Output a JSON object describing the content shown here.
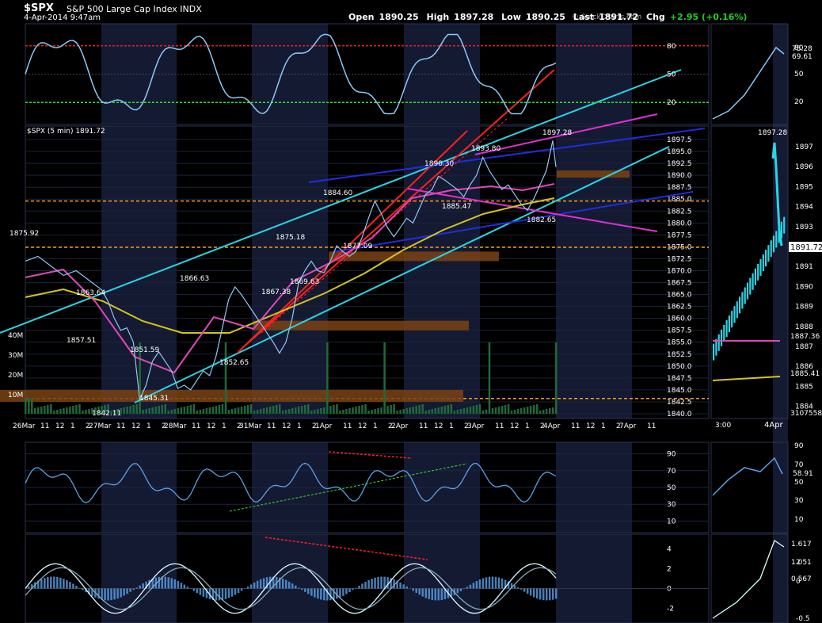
{
  "header": {
    "symbol": "$SPX",
    "name": "S&P 500 Large Cap Index INDX",
    "timestamp": "4-Apr-2014 9:47am",
    "open_label": "Open",
    "open": "1890.25",
    "high_label": "High",
    "high": "1897.28",
    "low_label": "Low",
    "low": "1890.25",
    "last_label": "Last",
    "last": "1891.72",
    "chg_label": "Chg",
    "chg": "+2.95 (+0.16%)",
    "logo": "© StockCharts.com"
  },
  "colors": {
    "background": "#000000",
    "panel_border": "#2a3550",
    "session_shade": "#151a33",
    "price_line": "#8ec7f5",
    "indicator_line": "#5aa0e8",
    "trend_red": "#ff2020",
    "trend_cyan": "#29d5e5",
    "trend_blue": "#1f2de0",
    "trend_magenta": "#e030d0",
    "ma_yellow": "#d4c420",
    "ma_pink": "#e048b8",
    "level_orange": "#ff9a1a",
    "zone_brown": "#7a4313",
    "rsi_red": "#e02020",
    "rsi_green": "#30e030",
    "volume_green": "#1f6a3a"
  },
  "chart_data": {
    "type": "line",
    "timeframe": "5 min",
    "price_legend": "$SPX (5 min) 1891.72",
    "price_axis": {
      "ylim": [
        1840.0,
        1898.5
      ],
      "ticks": [
        "1897.5",
        "1895.0",
        "1892.5",
        "1890.0",
        "1887.5",
        "1885.0",
        "1882.5",
        "1880.0",
        "1877.5",
        "1875.0",
        "1872.5",
        "1870.0",
        "1867.5",
        "1865.0",
        "1862.5",
        "1860.0",
        "1857.5",
        "1855.0",
        "1852.5",
        "1850.0",
        "1847.5",
        "1845.0",
        "1842.5",
        "1840.0"
      ],
      "last_value": "1891.72"
    },
    "price_series": [
      [
        0,
        1872
      ],
      [
        4,
        1873
      ],
      [
        8,
        1871
      ],
      [
        12,
        1869
      ],
      [
        16,
        1870
      ],
      [
        20,
        1868
      ],
      [
        24,
        1866
      ],
      [
        26,
        1863.6
      ],
      [
        28,
        1860
      ],
      [
        30,
        1857.5
      ],
      [
        32,
        1858
      ],
      [
        34,
        1855
      ],
      [
        36,
        1843
      ],
      [
        38,
        1846
      ],
      [
        40,
        1851
      ],
      [
        42,
        1853
      ],
      [
        44,
        1851
      ],
      [
        46,
        1849
      ],
      [
        48,
        1845.3
      ],
      [
        50,
        1846
      ],
      [
        52,
        1845
      ],
      [
        54,
        1847
      ],
      [
        56,
        1849
      ],
      [
        58,
        1848
      ],
      [
        60,
        1852
      ],
      [
        62,
        1858
      ],
      [
        64,
        1864
      ],
      [
        66,
        1866.6
      ],
      [
        68,
        1865
      ],
      [
        70,
        1863
      ],
      [
        72,
        1861
      ],
      [
        74,
        1859
      ],
      [
        76,
        1857
      ],
      [
        78,
        1855
      ],
      [
        80,
        1852.7
      ],
      [
        82,
        1855
      ],
      [
        84,
        1860
      ],
      [
        86,
        1867.4
      ],
      [
        88,
        1870
      ],
      [
        90,
        1872
      ],
      [
        92,
        1870
      ],
      [
        94,
        1869.6
      ],
      [
        96,
        1872
      ],
      [
        98,
        1875.2
      ],
      [
        100,
        1874
      ],
      [
        102,
        1873
      ],
      [
        104,
        1874
      ],
      [
        106,
        1877
      ],
      [
        108,
        1881
      ],
      [
        110,
        1884.6
      ],
      [
        112,
        1882
      ],
      [
        114,
        1879
      ],
      [
        116,
        1877.1
      ],
      [
        118,
        1879
      ],
      [
        120,
        1881
      ],
      [
        122,
        1880
      ],
      [
        124,
        1883
      ],
      [
        126,
        1886
      ],
      [
        128,
        1887
      ],
      [
        130,
        1889.8
      ],
      [
        132,
        1889
      ],
      [
        134,
        1888
      ],
      [
        136,
        1887
      ],
      [
        138,
        1885.5
      ],
      [
        140,
        1888
      ],
      [
        142,
        1890
      ],
      [
        144,
        1893.8
      ],
      [
        146,
        1891
      ],
      [
        148,
        1889
      ],
      [
        150,
        1887
      ],
      [
        152,
        1888
      ],
      [
        154,
        1886
      ],
      [
        156,
        1884
      ],
      [
        158,
        1882.65
      ],
      [
        160,
        1885
      ],
      [
        162,
        1888
      ],
      [
        164,
        1891
      ],
      [
        166,
        1897.28
      ],
      [
        167,
        1891.72
      ]
    ],
    "price_labels": [
      "1875.92",
      "1863.64",
      "1857.51",
      "1842.11",
      "1851.59",
      "1845.31",
      "1866.63",
      "1852.65",
      "1867.38",
      "1875.18",
      "1869.63",
      "1884.60",
      "1877.09",
      "1890.30",
      "1885.47",
      "1893.80",
      "1882.65",
      "1897.28"
    ],
    "x_axis_labels": [
      "26Mar",
      "11",
      "12",
      "1",
      "2",
      "27Mar",
      "11",
      "12",
      "1",
      "2",
      "28Mar",
      "11",
      "12",
      "1",
      "2",
      "31Mar",
      "11",
      "12",
      "1",
      "2",
      "1Apr",
      "11",
      "12",
      "1",
      "2",
      "2Apr",
      "11",
      "12",
      "1",
      "2",
      "3Apr",
      "11",
      "12",
      "1",
      "2",
      "4Apr",
      "11",
      "12",
      "1",
      "2",
      "7Apr",
      "11"
    ],
    "volume_axis": {
      "ticks": [
        "40M",
        "30M",
        "20M",
        "10M"
      ]
    },
    "rsi_top": {
      "ticks": [
        "80",
        "50",
        "20"
      ],
      "overbought": 80,
      "oversold": 20,
      "ylim": [
        0,
        100
      ]
    },
    "rsi_bottom": {
      "ticks": [
        "90",
        "70",
        "50",
        "30",
        "10"
      ],
      "ylim": [
        0,
        100
      ]
    },
    "macd": {
      "ticks": [
        "4",
        "2",
        "0",
        "-2"
      ],
      "ylim": [
        -3,
        5
      ]
    },
    "side_panel": {
      "x_labels": [
        "3:00",
        "4Apr"
      ],
      "rsi_top_values": [
        "75.28",
        "69.61"
      ],
      "rsi_top_ticks": [
        "80",
        "50",
        "20"
      ],
      "price_high_label": "1897.28",
      "price_ticks": [
        "1897",
        "1896",
        "1895",
        "1894",
        "1893",
        "1892",
        "1891",
        "1890",
        "1889",
        "1888",
        "1887",
        "1886",
        "1885",
        "1884"
      ],
      "price_last": "1891.72",
      "ma_values": [
        "1887.36",
        "1885.41"
      ],
      "volume_value": "3107558",
      "rsi_bottom_value": "58.91",
      "rsi_bottom_ticks": [
        "90",
        "70",
        "50",
        "30",
        "10"
      ],
      "macd_values": [
        "1.617",
        "1.051",
        "0.567"
      ],
      "macd_ticks": [
        "2",
        "0",
        "-0.5"
      ]
    }
  }
}
